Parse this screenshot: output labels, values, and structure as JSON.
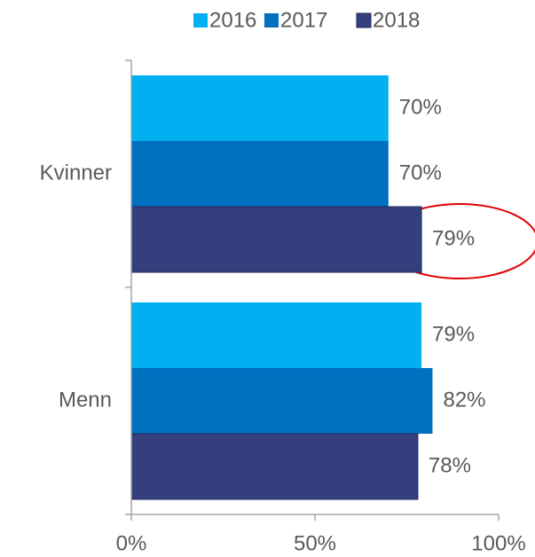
{
  "chart_data": {
    "type": "bar",
    "orientation": "horizontal",
    "categories": [
      "Kvinner",
      "Menn"
    ],
    "series": [
      {
        "name": "2016",
        "color": "#00b0f0",
        "values": [
          70,
          79
        ],
        "value_labels": [
          "70%",
          "79%"
        ]
      },
      {
        "name": "2017",
        "color": "#0070c0",
        "values": [
          70,
          82
        ],
        "value_labels": [
          "70%",
          "82%"
        ]
      },
      {
        "name": "2018",
        "color": "#353f7d",
        "values": [
          79,
          78
        ],
        "value_labels": [
          "79%",
          "78%"
        ]
      }
    ],
    "xlim": [
      0,
      100
    ],
    "xticks": [
      {
        "value": 0,
        "label": "0%"
      },
      {
        "value": 50,
        "label": "50%"
      },
      {
        "value": 100,
        "label": "100%"
      }
    ],
    "legend": "top"
  }
}
